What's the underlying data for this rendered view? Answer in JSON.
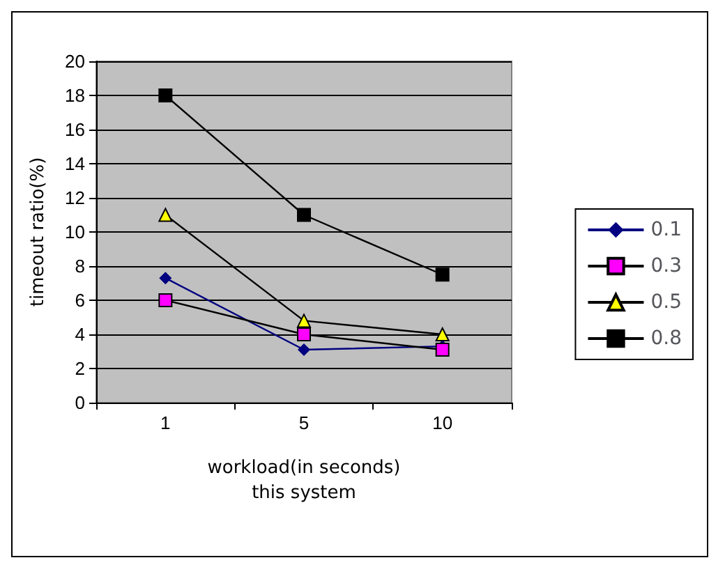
{
  "chart_data": {
    "type": "line",
    "xlabel": "workload(in seconds)\nthis system",
    "ylabel": "timeout ratio(%)",
    "categories": [
      "1",
      "5",
      "10"
    ],
    "series": [
      {
        "name": "0.1",
        "color": "#000080",
        "marker": "diamond",
        "values": [
          7.3,
          3.1,
          3.3
        ]
      },
      {
        "name": "0.3",
        "color": "#ff00ff",
        "marker": "square",
        "values": [
          6,
          4,
          3.1
        ]
      },
      {
        "name": "0.5",
        "color": "#ffff00",
        "marker": "triangle",
        "values": [
          11,
          4.8,
          4
        ]
      },
      {
        "name": "0.8",
        "color": "#000000",
        "marker": "square",
        "values": [
          18,
          11,
          7.5
        ]
      }
    ],
    "ylim": [
      0,
      20
    ],
    "yticks": [
      0,
      2,
      4,
      6,
      8,
      10,
      12,
      14,
      16,
      18,
      20
    ],
    "grid": "y",
    "legend": "right"
  }
}
